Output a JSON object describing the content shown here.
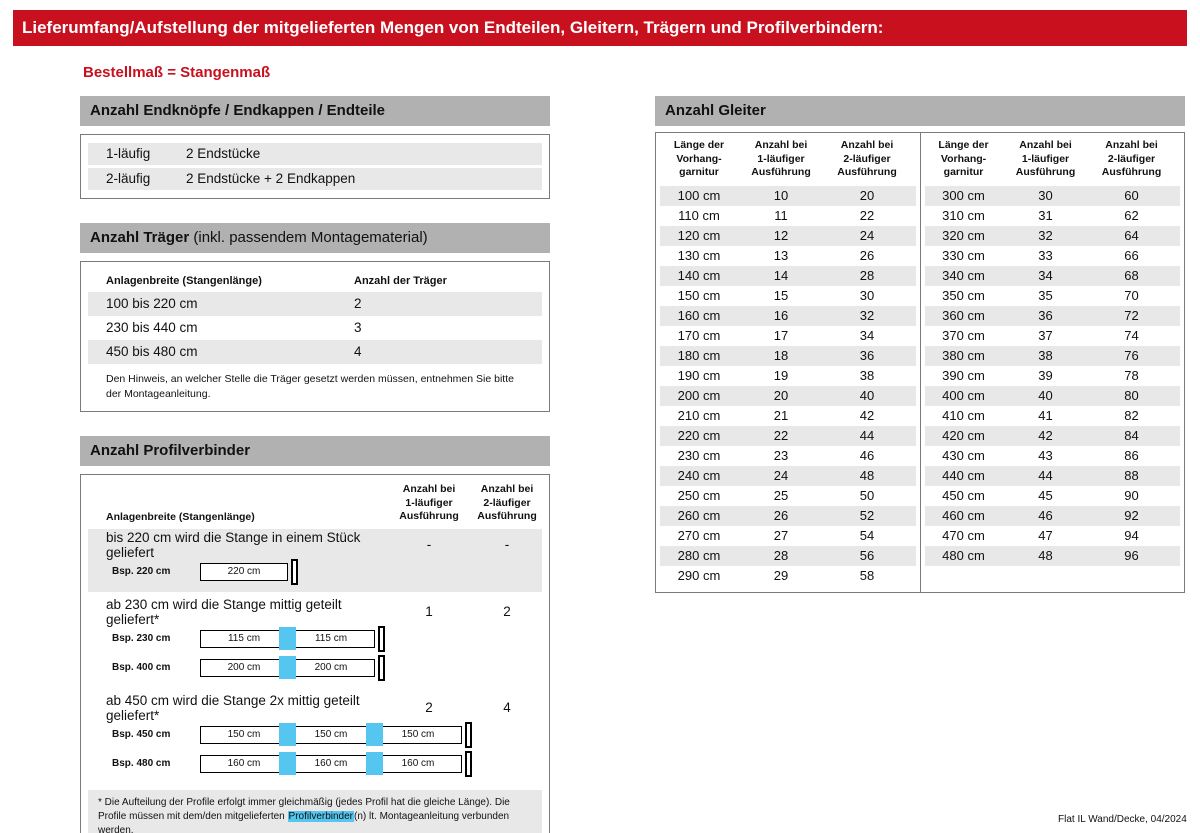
{
  "colors": {
    "red": "#c8101e",
    "bar_gray": "#b1b1b1",
    "stripe": "#e8e8e8",
    "blue": "#54c6ef",
    "border": "#7a7a7a"
  },
  "header": {
    "title": "Lieferumfang/Aufstellung der mitgelieferten Mengen von Endteilen, Gleitern, Trägern und Profilverbindern:",
    "subtitle": "Bestellmaß = Stangenmaß"
  },
  "endteile": {
    "title": "Anzahl Endknöpfe / Endkappen / Endteile",
    "rows": [
      {
        "label": "1-läufig",
        "value": "2 Endstücke"
      },
      {
        "label": "2-läufig",
        "value": "2 Endstücke + 2 Endkappen"
      }
    ]
  },
  "traeger": {
    "title": "Anzahl Träger",
    "title_suffix": " (inkl. passendem Montagematerial)",
    "col_width": "Anlagenbreite (Stangenlänge)",
    "col_count": "Anzahl der Träger",
    "rows": [
      {
        "range": "100 bis 220 cm",
        "count": "2"
      },
      {
        "range": "230 bis 440 cm",
        "count": "3"
      },
      {
        "range": "450 bis 480 cm",
        "count": "4"
      }
    ],
    "note": "Den Hinweis, an welcher Stelle die Träger gesetzt werden müssen, entnehmen Sie bitte\nder Montageanleitung."
  },
  "profilverbinder": {
    "title": "Anzahl Profilverbinder",
    "col_width": "Anlagenbreite (Stangenlänge)",
    "col_1": "Anzahl bei\n1-läufiger\nAusführung",
    "col_2": "Anzahl bei\n2-läufiger\nAusführung",
    "blocks": [
      {
        "text": "bis 220 cm wird die Stange in einem Stück geliefert",
        "v1": "-",
        "v2": "-"
      },
      {
        "text": "ab 230 cm wird die Stange mittig geteilt geliefert*",
        "v1": "1",
        "v2": "2"
      },
      {
        "text": "ab 450 cm wird die Stange 2x mittig geteilt geliefert*",
        "v1": "2",
        "v2": "4"
      }
    ],
    "examples": {
      "ex220": {
        "label": "Bsp. 220 cm",
        "seg1": "220 cm"
      },
      "ex230": {
        "label": "Bsp. 230 cm",
        "seg1": "115 cm",
        "seg2": "115 cm"
      },
      "ex400": {
        "label": "Bsp. 400 cm",
        "seg1": "200 cm",
        "seg2": "200 cm"
      },
      "ex450": {
        "label": "Bsp. 450 cm",
        "seg1": "150 cm",
        "seg2": "150 cm",
        "seg3": "150 cm"
      },
      "ex480": {
        "label": "Bsp. 480 cm",
        "seg1": "160 cm",
        "seg2": "160 cm",
        "seg3": "160 cm"
      }
    },
    "footnote": {
      "pre": "* Die Aufteilung der Profile erfolgt immer gleichmäßig (jedes Profil hat die gleiche Länge). Die Profile müssen mit dem/den mitgelieferten ",
      "highlight": "Profilverbinder",
      "post": "(n) lt. Montageanleitung verbunden werden."
    }
  },
  "gleiter": {
    "title": "Anzahl Gleiter",
    "col_length": "Länge der\nVorhang-\ngarnitur",
    "col_1": "Anzahl bei\n1-läufiger\nAusführung",
    "col_2": "Anzahl bei\n2-läufiger\nAusführung",
    "left_rows": [
      {
        "len": "100 cm",
        "a1": "10",
        "a2": "20"
      },
      {
        "len": "110 cm",
        "a1": "11",
        "a2": "22"
      },
      {
        "len": "120 cm",
        "a1": "12",
        "a2": "24"
      },
      {
        "len": "130 cm",
        "a1": "13",
        "a2": "26"
      },
      {
        "len": "140 cm",
        "a1": "14",
        "a2": "28"
      },
      {
        "len": "150 cm",
        "a1": "15",
        "a2": "30"
      },
      {
        "len": "160 cm",
        "a1": "16",
        "a2": "32"
      },
      {
        "len": "170 cm",
        "a1": "17",
        "a2": "34"
      },
      {
        "len": "180 cm",
        "a1": "18",
        "a2": "36"
      },
      {
        "len": "190 cm",
        "a1": "19",
        "a2": "38"
      },
      {
        "len": "200 cm",
        "a1": "20",
        "a2": "40"
      },
      {
        "len": "210 cm",
        "a1": "21",
        "a2": "42"
      },
      {
        "len": "220 cm",
        "a1": "22",
        "a2": "44"
      },
      {
        "len": "230 cm",
        "a1": "23",
        "a2": "46"
      },
      {
        "len": "240 cm",
        "a1": "24",
        "a2": "48"
      },
      {
        "len": "250 cm",
        "a1": "25",
        "a2": "50"
      },
      {
        "len": "260 cm",
        "a1": "26",
        "a2": "52"
      },
      {
        "len": "270 cm",
        "a1": "27",
        "a2": "54"
      },
      {
        "len": "280 cm",
        "a1": "28",
        "a2": "56"
      },
      {
        "len": "290 cm",
        "a1": "29",
        "a2": "58"
      }
    ],
    "right_rows": [
      {
        "len": "300 cm",
        "a1": "30",
        "a2": "60"
      },
      {
        "len": "310 cm",
        "a1": "31",
        "a2": "62"
      },
      {
        "len": "320 cm",
        "a1": "32",
        "a2": "64"
      },
      {
        "len": "330 cm",
        "a1": "33",
        "a2": "66"
      },
      {
        "len": "340 cm",
        "a1": "34",
        "a2": "68"
      },
      {
        "len": "350 cm",
        "a1": "35",
        "a2": "70"
      },
      {
        "len": "360 cm",
        "a1": "36",
        "a2": "72"
      },
      {
        "len": "370 cm",
        "a1": "37",
        "a2": "74"
      },
      {
        "len": "380 cm",
        "a1": "38",
        "a2": "76"
      },
      {
        "len": "390 cm",
        "a1": "39",
        "a2": "78"
      },
      {
        "len": "400 cm",
        "a1": "40",
        "a2": "80"
      },
      {
        "len": "410 cm",
        "a1": "41",
        "a2": "82"
      },
      {
        "len": "420 cm",
        "a1": "42",
        "a2": "84"
      },
      {
        "len": "430 cm",
        "a1": "43",
        "a2": "86"
      },
      {
        "len": "440 cm",
        "a1": "44",
        "a2": "88"
      },
      {
        "len": "450 cm",
        "a1": "45",
        "a2": "90"
      },
      {
        "len": "460 cm",
        "a1": "46",
        "a2": "92"
      },
      {
        "len": "470 cm",
        "a1": "47",
        "a2": "94"
      },
      {
        "len": "480 cm",
        "a1": "48",
        "a2": "96"
      }
    ]
  },
  "footer": "Flat IL Wand/Decke, 04/2024"
}
